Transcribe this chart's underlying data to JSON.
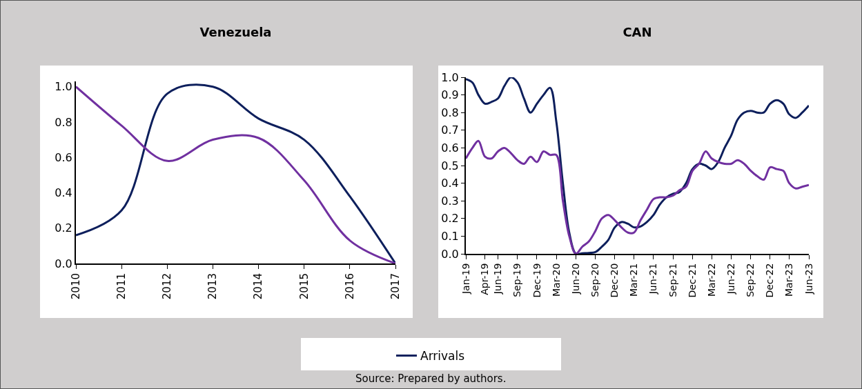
{
  "chart_data": [
    {
      "type": "line",
      "title": "Venezuela",
      "x": [
        2010,
        2011,
        2012,
        2013,
        2014,
        2015,
        2016,
        2017
      ],
      "series": [
        {
          "name": "Arrivals",
          "color": "#0d1f5c",
          "values": [
            0.16,
            0.3,
            0.96,
            1.0,
            0.82,
            0.7,
            0.38,
            0.0
          ]
        },
        {
          "color": "#7030a0",
          "values": [
            1.0,
            0.78,
            0.58,
            0.7,
            0.71,
            0.47,
            0.13,
            0.0
          ]
        }
      ],
      "xlim": [
        2010,
        2017
      ],
      "xticks": [
        2010,
        2011,
        2012,
        2013,
        2014,
        2015,
        2016,
        2017
      ],
      "ylim": [
        0,
        1.03
      ],
      "yticks": [
        {
          "value": 0,
          "label": "0.0"
        },
        {
          "value": 0.2,
          "label": "0.2"
        },
        {
          "value": 0.4,
          "label": "0.4"
        },
        {
          "value": 0.6,
          "label": "0.6"
        },
        {
          "value": 0.8,
          "label": "0.8"
        },
        {
          "value": 1,
          "label": "1.0"
        }
      ],
      "grid": false,
      "legend": "bottom",
      "line_style": "solid",
      "marker": "none",
      "annotations": [
        "Source: Prepared by authors."
      ]
    },
    {
      "type": "line",
      "title": "CAN",
      "x": [
        "2019-01",
        "2019-02",
        "2019-03",
        "2019-04",
        "2019-05",
        "2019-06",
        "2019-07",
        "2019-08",
        "2019-09",
        "2019-10",
        "2019-11",
        "2019-12",
        "2020-01",
        "2020-02",
        "2020-03",
        "2020-04",
        "2020-05",
        "2020-06",
        "2020-07",
        "2020-08",
        "2020-09",
        "2020-10",
        "2020-11",
        "2020-12",
        "2021-01",
        "2021-02",
        "2021-03",
        "2021-04",
        "2021-05",
        "2021-06",
        "2021-07",
        "2021-08",
        "2021-09",
        "2021-10",
        "2021-11",
        "2021-12",
        "2022-01",
        "2022-02",
        "2022-03",
        "2022-04",
        "2022-05",
        "2022-06",
        "2022-07",
        "2022-08",
        "2022-09",
        "2022-10",
        "2022-11",
        "2022-12",
        "2023-01",
        "2023-02",
        "2023-03",
        "2023-04",
        "2023-05",
        "2023-06"
      ],
      "series": [
        {
          "color": "#0d1f5c",
          "values": [
            0.99,
            0.97,
            0.9,
            0.85,
            0.86,
            0.88,
            0.95,
            1.0,
            0.97,
            0.88,
            0.8,
            0.85,
            0.9,
            0.94,
            0.75,
            0.4,
            0.12,
            0.0,
            0.003,
            0.005,
            0.01,
            0.04,
            0.08,
            0.15,
            0.18,
            0.17,
            0.15,
            0.155,
            0.18,
            0.22,
            0.28,
            0.32,
            0.34,
            0.35,
            0.4,
            0.48,
            0.51,
            0.5,
            0.48,
            0.52,
            0.6,
            0.67,
            0.76,
            0.8,
            0.81,
            0.8,
            0.8,
            0.85,
            0.87,
            0.85,
            0.79,
            0.77,
            0.8,
            0.84
          ]
        },
        {
          "color": "#7030a0",
          "values": [
            0.54,
            0.6,
            0.64,
            0.55,
            0.54,
            0.58,
            0.6,
            0.57,
            0.53,
            0.51,
            0.55,
            0.52,
            0.58,
            0.56,
            0.56,
            0.3,
            0.1,
            0.0,
            0.04,
            0.07,
            0.13,
            0.2,
            0.22,
            0.19,
            0.15,
            0.12,
            0.12,
            0.19,
            0.25,
            0.31,
            0.32,
            0.32,
            0.33,
            0.36,
            0.38,
            0.47,
            0.51,
            0.58,
            0.54,
            0.52,
            0.51,
            0.51,
            0.53,
            0.51,
            0.47,
            0.44,
            0.42,
            0.49,
            0.48,
            0.47,
            0.4,
            0.37,
            0.38,
            0.39
          ]
        }
      ],
      "xlim": [
        "2019-01",
        "2023-06"
      ],
      "xticks": [
        {
          "value": "2019-01",
          "label": "Jan-19"
        },
        {
          "value": "2019-04",
          "label": "Apr-19"
        },
        {
          "value": "2019-06",
          "label": "Jun-19"
        },
        {
          "value": "2019-09",
          "label": "Sep-19"
        },
        {
          "value": "2019-12",
          "label": "Dec-19"
        },
        {
          "value": "2020-03",
          "label": "Mar-20"
        },
        {
          "value": "2020-06",
          "label": "Jun-20"
        },
        {
          "value": "2020-09",
          "label": "Sep-20"
        },
        {
          "value": "2020-12",
          "label": "Dec-20"
        },
        {
          "value": "2021-03",
          "label": "Mar-21"
        },
        {
          "value": "2021-06",
          "label": "Jun-21"
        },
        {
          "value": "2021-09",
          "label": "Sep-21"
        },
        {
          "value": "2021-12",
          "label": "Dec-21"
        },
        {
          "value": "2022-03",
          "label": "Mar-22"
        },
        {
          "value": "2022-06",
          "label": "Jun-22"
        },
        {
          "value": "2022-09",
          "label": "Sep-22"
        },
        {
          "value": "2022-12",
          "label": "Dec-22"
        },
        {
          "value": "2023-03",
          "label": "Mar-23"
        },
        {
          "value": "2023-06",
          "label": "Jun-23"
        }
      ],
      "ylim": [
        0,
        1.0
      ],
      "yticks": [
        {
          "value": 0,
          "label": "0.0"
        },
        {
          "value": 0.1,
          "label": "0.1"
        },
        {
          "value": 0.2,
          "label": "0.2"
        },
        {
          "value": 0.3,
          "label": "0.3"
        },
        {
          "value": 0.4,
          "label": "0.4"
        },
        {
          "value": 0.5,
          "label": "0.5"
        },
        {
          "value": 0.6,
          "label": "0.6"
        },
        {
          "value": 0.7,
          "label": "0.7"
        },
        {
          "value": 0.8,
          "label": "0.8"
        },
        {
          "value": 0.9,
          "label": "0.9"
        },
        {
          "value": 1,
          "label": "1.0"
        }
      ],
      "grid": false,
      "legend": false,
      "line_style": "solid",
      "marker": "none"
    }
  ]
}
